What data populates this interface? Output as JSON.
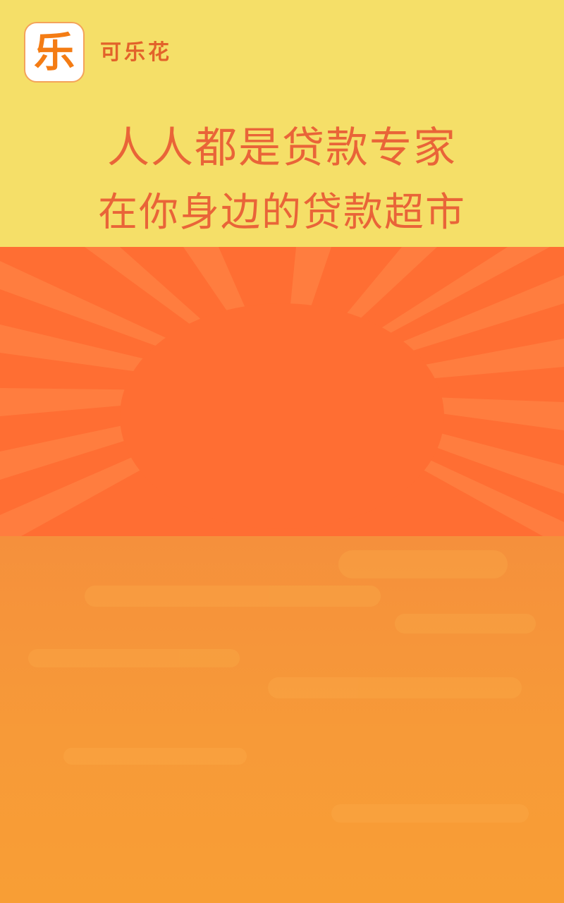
{
  "app": {
    "icon_glyph": "乐",
    "name": "可乐花"
  },
  "slogans": {
    "line1": "人人都是贷款专家",
    "line2": "在你身边的贷款超市"
  },
  "colors": {
    "top_background": "#f5df68",
    "slogan_text": "#e96438",
    "app_name_text": "#e2622a",
    "icon_accent": "#f47c14",
    "burst_background": "#ff6e33",
    "bottom_background": "#f79a38"
  },
  "icons": {
    "app_logo": "app-logo-icon",
    "burst": "sunburst-decoration"
  }
}
